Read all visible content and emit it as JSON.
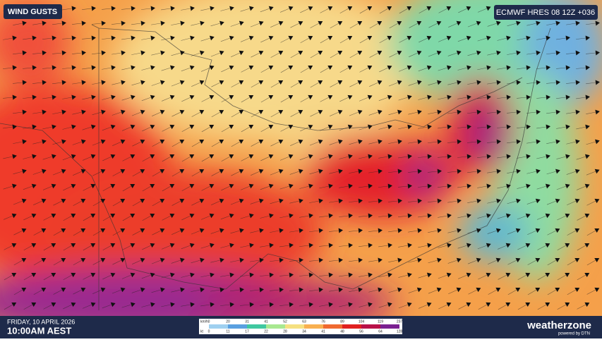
{
  "header": {
    "title": "WIND GUSTS",
    "model": "ECMWF HRES 08 12Z +036"
  },
  "footer": {
    "date": "FRIDAY, 10 APRIL 2026",
    "time": "10:00AM AEST",
    "brand": "weatherzone",
    "powered": "powered by DTN"
  },
  "legend": {
    "unit_top": "km/h",
    "unit_bottom": "kt",
    "kmh": [
      0,
      20,
      31,
      41,
      52,
      63,
      76,
      89,
      104,
      119,
      237
    ],
    "kt": [
      0,
      11,
      17,
      22,
      28,
      34,
      41,
      48,
      56,
      64,
      128
    ]
  }
}
